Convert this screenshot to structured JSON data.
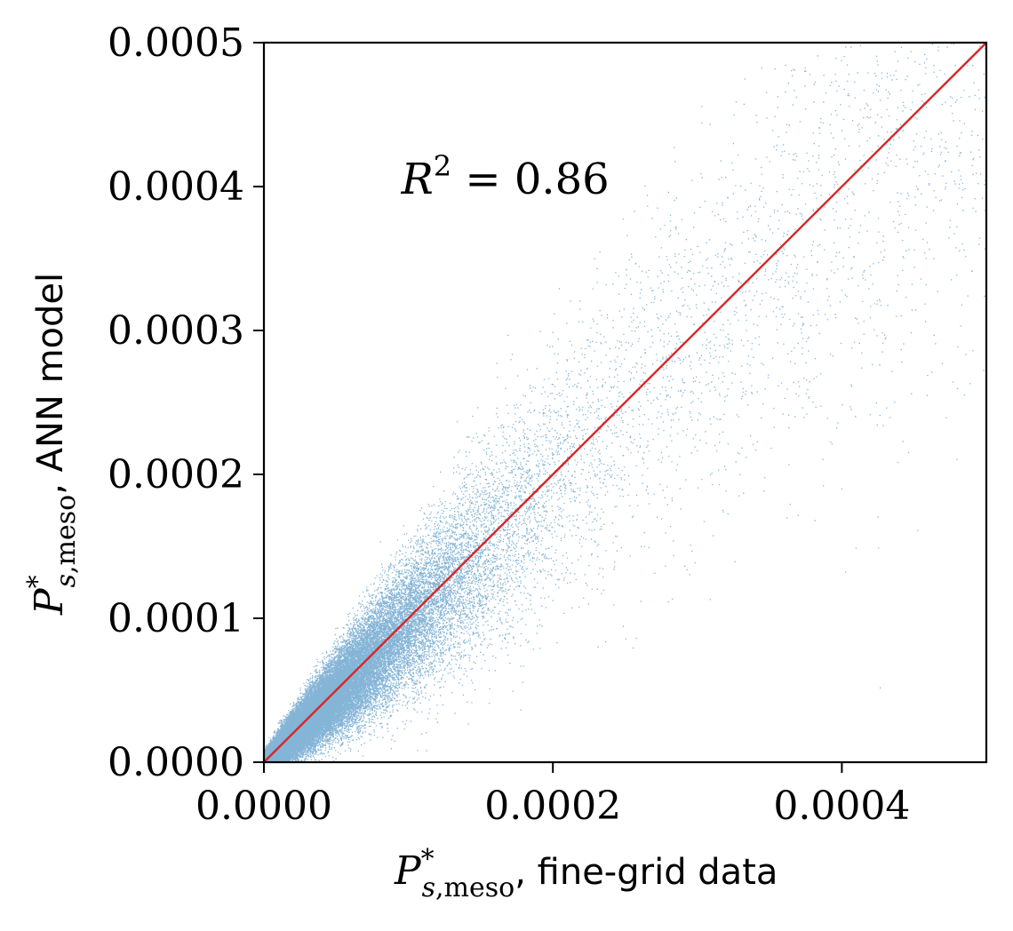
{
  "chart_data": {
    "type": "scatter",
    "xlabel": {
      "symbol": "P",
      "superscript": "*",
      "subscript_italic": "s",
      "subscript_rest": ",meso",
      "suffix": ", fine-grid data"
    },
    "ylabel": {
      "symbol": "P",
      "superscript": "*",
      "subscript_italic": "s",
      "subscript_rest": ",meso",
      "suffix": ", ANN model"
    },
    "xlim": [
      0,
      0.0005
    ],
    "ylim": [
      0,
      0.0005
    ],
    "x_ticks": [
      0,
      0.0002,
      0.0004
    ],
    "x_tick_labels": [
      "0.0000",
      "0.0002",
      "0.0004"
    ],
    "y_ticks": [
      0,
      0.0001,
      0.0002,
      0.0003,
      0.0004,
      0.0005
    ],
    "y_tick_labels": [
      "0.0000",
      "0.0001",
      "0.0002",
      "0.0003",
      "0.0004",
      "0.0005"
    ],
    "annotation": {
      "base": "R",
      "sup": "2",
      "rest": " = 0.86",
      "x": 0.0001,
      "y": 0.0004
    },
    "reference_line": {
      "from": [
        0,
        0
      ],
      "to": [
        0.0005,
        0.0005
      ],
      "color": "#d62728"
    },
    "series": [
      {
        "points": "dense cloud along y = x",
        "color": "#1f77b4",
        "point_count": 52000
      }
    ],
    "grid": false,
    "legend": "none"
  }
}
